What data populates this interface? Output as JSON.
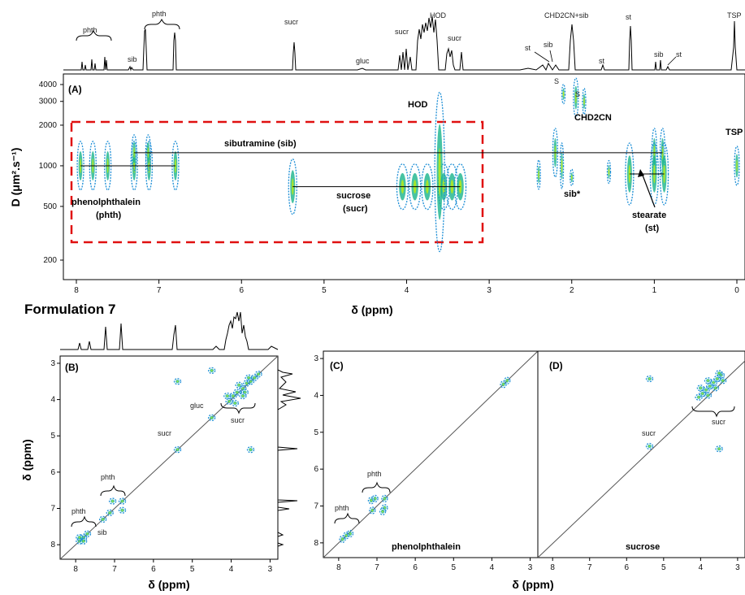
{
  "figure_title": "Formulation 7",
  "spectrum_peak_labels": [
    {
      "text": "phth"
    },
    {
      "text": "phth"
    },
    {
      "text": "sib"
    },
    {
      "text": "sucr"
    },
    {
      "text": "gluc"
    },
    {
      "text": "sucr"
    },
    {
      "text": "HOD"
    },
    {
      "text": "sucr"
    },
    {
      "text": "st"
    },
    {
      "text": "sib"
    },
    {
      "text": "CHD2CN+sib"
    },
    {
      "text": "st"
    },
    {
      "text": "st"
    },
    {
      "text": "sib"
    },
    {
      "text": "st"
    },
    {
      "text": "TSP"
    }
  ],
  "chart_data": [
    {
      "panel": "(A)",
      "type": "scatter",
      "subtype": "2D DOSY contour map",
      "xlabel": "δ (ppm)",
      "ylabel": "D (μm².s⁻¹)",
      "x_ticks": [
        "8",
        "7",
        "6",
        "5",
        "4",
        "3",
        "2",
        "1",
        "0"
      ],
      "y_ticks": [
        "4000",
        "3000",
        "2000",
        "1000",
        "500",
        "200"
      ],
      "xlim": [
        8.2,
        -0.1
      ],
      "ylim": [
        140,
        4500
      ],
      "y_scale": "log",
      "x_direction": "reversed",
      "annotations": [
        {
          "text": "HOD"
        },
        {
          "text": "CHD2CN"
        },
        {
          "text": "sibutramine (sib)"
        },
        {
          "text": "phenolphthalein"
        },
        {
          "text": "(phth)"
        },
        {
          "text": "sucrose"
        },
        {
          "text": "(sucr)"
        },
        {
          "text": "sib*"
        },
        {
          "text": "stearate"
        },
        {
          "text": "(st)"
        },
        {
          "text": "TSP"
        },
        {
          "text": "S"
        },
        {
          "text": "S"
        }
      ],
      "series": [
        {
          "name": "phenolphthalein (phth)",
          "D": 1000,
          "x": [
            7.95,
            7.8,
            7.62,
            7.3,
            7.12,
            6.8
          ]
        },
        {
          "name": "sibutramine (sib)",
          "D": 1250,
          "x": [
            7.3,
            7.13,
            2.2,
            1.0,
            0.9
          ]
        },
        {
          "name": "sucrose (sucr)",
          "D": 700,
          "x": [
            5.38,
            4.05,
            3.9,
            3.75,
            3.55,
            3.45,
            3.35
          ]
        },
        {
          "name": "stearate (st)",
          "D": 870,
          "x": [
            1.3,
            1.0,
            0.88
          ]
        },
        {
          "name": "TSP",
          "D": 1000,
          "x": [
            0.0
          ]
        },
        {
          "name": "HOD",
          "D": 2500,
          "x": [
            3.6
          ]
        },
        {
          "name": "CHD2CN",
          "D": 3000,
          "x": [
            1.95
          ]
        }
      ]
    },
    {
      "panel": "(B)",
      "type": "scatter",
      "subtype": "2D correlation map",
      "xlabel": "δ (ppm)",
      "ylabel": "δ (ppm)",
      "x_ticks": [
        "8",
        "7",
        "6",
        "5",
        "4",
        "3"
      ],
      "y_ticks": [
        "3",
        "4",
        "5",
        "6",
        "7",
        "8"
      ],
      "xlim": [
        8.4,
        2.8
      ],
      "ylim": [
        2.8,
        8.4
      ],
      "annotations": [
        {
          "text": "gluc"
        },
        {
          "text": "sucr"
        },
        {
          "text": "sucr"
        },
        {
          "text": "phth"
        },
        {
          "text": "phth"
        },
        {
          "text": "sib"
        }
      ]
    },
    {
      "panel": "(C)",
      "type": "scatter",
      "subtype": "2D correlation map",
      "xlabel": "δ (ppm)",
      "x_ticks": [
        "8",
        "7",
        "6",
        "5",
        "4",
        "3"
      ],
      "y_ticks": [
        "3",
        "4",
        "5",
        "6",
        "7",
        "8"
      ],
      "xlim": [
        8.4,
        2.8
      ],
      "ylim": [
        2.8,
        8.4
      ],
      "annotations": [
        {
          "text": "phth"
        },
        {
          "text": "phth"
        },
        {
          "text": "phenolphthalein"
        }
      ]
    },
    {
      "panel": "(D)",
      "type": "scatter",
      "subtype": "2D correlation map",
      "x_ticks": [
        "8",
        "7",
        "6",
        "5",
        "4",
        "3"
      ],
      "xlim": [
        8.4,
        2.8
      ],
      "ylim": [
        2.8,
        8.4
      ],
      "annotations": [
        {
          "text": "sucr"
        },
        {
          "text": "sucr"
        },
        {
          "text": "sucrose"
        }
      ]
    }
  ],
  "colors": {
    "contour_outer": "#1e8fd6",
    "contour_mid": "#19b48c",
    "contour_inner": "#a8e62a",
    "box_dashed": "#e01010",
    "axis": "#000000"
  }
}
